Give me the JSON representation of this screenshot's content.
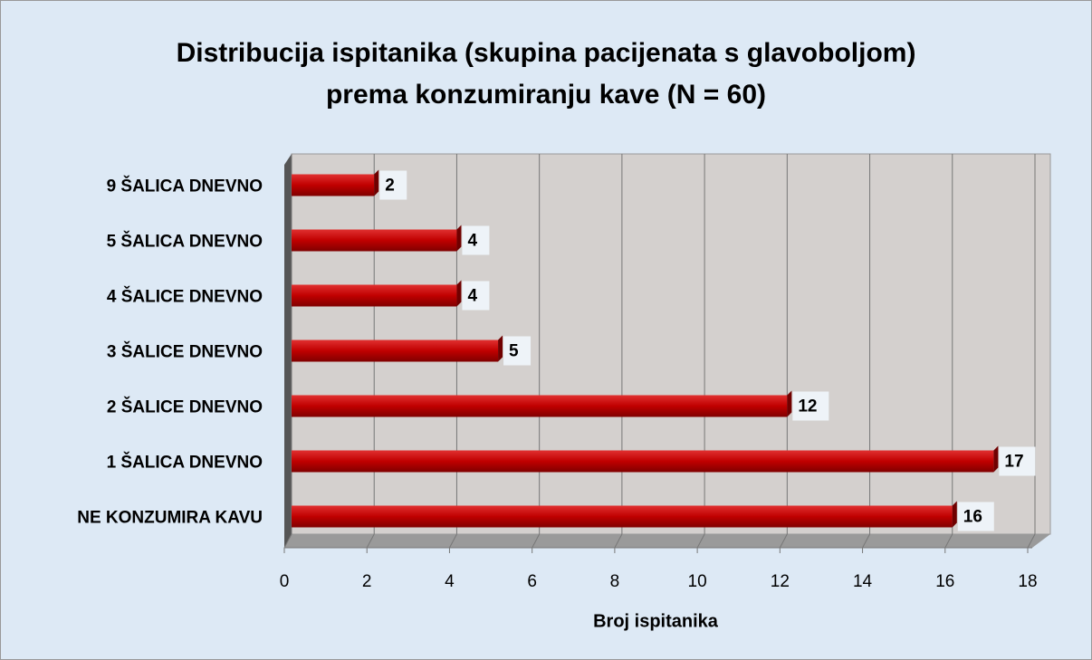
{
  "chart_data": {
    "type": "bar",
    "orientation": "horizontal",
    "title": [
      "Distribucija ispitanika (skupina pacijenata s glavoboljom)",
      "prema konzumiranju kave (N = 60)"
    ],
    "x_label": "Broj ispitanika",
    "categories": [
      "9 ŠALICA DNEVNO",
      "5 ŠALICA DNEVNO",
      "4 ŠALICE DNEVNO",
      "3 ŠALICE DNEVNO",
      "2 ŠALICE DNEVNO",
      "1 ŠALICA DNEVNO",
      "NE KONZUMIRA KAVU"
    ],
    "values": [
      2,
      4,
      4,
      5,
      12,
      17,
      16
    ],
    "color": "#c00000",
    "xlim": [
      0,
      18
    ],
    "xticks": [
      0,
      2,
      4,
      6,
      8,
      10,
      12,
      14,
      16,
      18
    ],
    "grid": true
  }
}
